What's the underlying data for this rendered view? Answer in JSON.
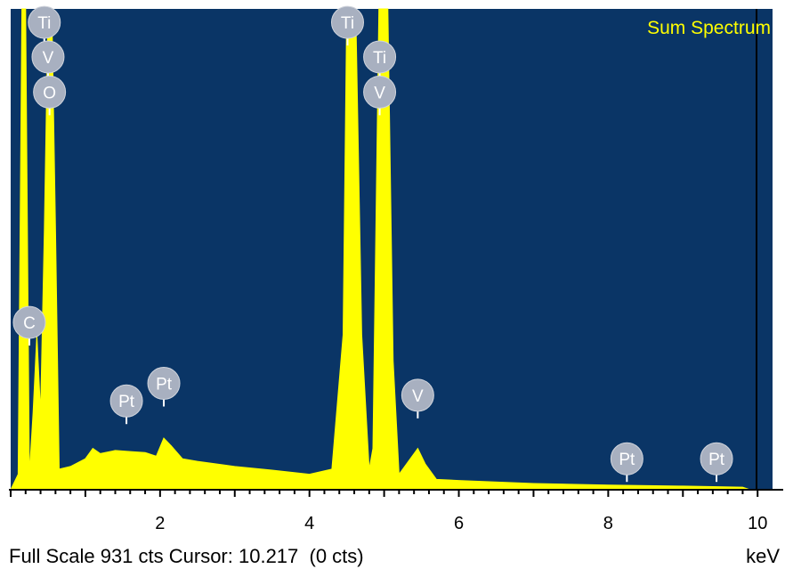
{
  "chart_data": {
    "type": "area",
    "title": "Sum Spectrum",
    "xlabel": "keV",
    "xlim": [
      0,
      10.2
    ],
    "ylim": [
      0,
      931
    ],
    "x_ticks": [
      2,
      4,
      6,
      8,
      10
    ],
    "grid": false,
    "colors": {
      "background": "#0a3566",
      "fill": "#ffff00",
      "label_circle": "#a8b0c0"
    },
    "spectrum": [
      [
        0.0,
        0
      ],
      [
        0.1,
        30
      ],
      [
        0.15,
        931
      ],
      [
        0.2,
        931
      ],
      [
        0.25,
        30
      ],
      [
        0.3,
        150
      ],
      [
        0.35,
        300
      ],
      [
        0.4,
        150
      ],
      [
        0.45,
        500
      ],
      [
        0.5,
        931
      ],
      [
        0.55,
        931
      ],
      [
        0.6,
        500
      ],
      [
        0.65,
        40
      ],
      [
        0.8,
        45
      ],
      [
        1.0,
        60
      ],
      [
        1.1,
        80
      ],
      [
        1.2,
        70
      ],
      [
        1.4,
        76
      ],
      [
        1.6,
        74
      ],
      [
        1.8,
        72
      ],
      [
        1.95,
        65
      ],
      [
        2.05,
        100
      ],
      [
        2.15,
        85
      ],
      [
        2.3,
        60
      ],
      [
        2.5,
        55
      ],
      [
        3.0,
        45
      ],
      [
        3.5,
        38
      ],
      [
        4.0,
        30
      ],
      [
        4.3,
        40
      ],
      [
        4.45,
        300
      ],
      [
        4.5,
        931
      ],
      [
        4.62,
        931
      ],
      [
        4.7,
        300
      ],
      [
        4.8,
        40
      ],
      [
        4.85,
        80
      ],
      [
        4.93,
        931
      ],
      [
        5.05,
        931
      ],
      [
        5.12,
        250
      ],
      [
        5.2,
        30
      ],
      [
        5.35,
        60
      ],
      [
        5.45,
        80
      ],
      [
        5.55,
        50
      ],
      [
        5.7,
        20
      ],
      [
        6.0,
        18
      ],
      [
        7.0,
        12
      ],
      [
        8.0,
        9
      ],
      [
        9.0,
        7
      ],
      [
        9.8,
        5
      ],
      [
        9.9,
        0
      ]
    ],
    "peak_labels": [
      {
        "text": "Ti",
        "x": 0.45,
        "y": 905
      },
      {
        "text": "V",
        "x": 0.5,
        "y": 838
      },
      {
        "text": "O",
        "x": 0.52,
        "y": 770
      },
      {
        "text": "C",
        "x": 0.25,
        "y": 324
      },
      {
        "text": "Pt",
        "x": 1.55,
        "y": 172
      },
      {
        "text": "Pt",
        "x": 2.05,
        "y": 206
      },
      {
        "text": "Ti",
        "x": 4.51,
        "y": 905
      },
      {
        "text": "Ti",
        "x": 4.94,
        "y": 838
      },
      {
        "text": "V",
        "x": 4.94,
        "y": 770
      },
      {
        "text": "V",
        "x": 5.45,
        "y": 183
      },
      {
        "text": "Pt",
        "x": 8.25,
        "y": 60
      },
      {
        "text": "Pt",
        "x": 9.45,
        "y": 60
      }
    ],
    "footer": {
      "full_scale_text": "Full Scale 931 cts Cursor: 10.217  (0 cts)",
      "unit": "keV"
    }
  }
}
